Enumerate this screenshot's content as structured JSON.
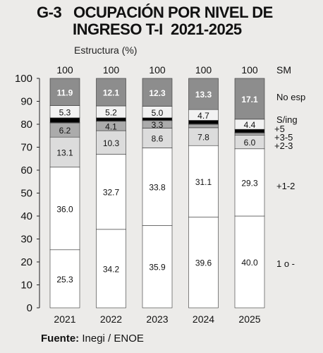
{
  "title": {
    "code": "G-3",
    "line1": "OCUPACIÓN POR NIVEL DE",
    "line2": "INGRESO T-I  2021-2025"
  },
  "subtitle": "Estructura (%)",
  "source": {
    "label": "Fuente:",
    "text": "Inegi / ENOE"
  },
  "chart_data": {
    "type": "bar",
    "stacked": true,
    "categories": [
      "2021",
      "2022",
      "2023",
      "2024",
      "2025"
    ],
    "totals": [
      "100",
      "100",
      "100",
      "100",
      "100"
    ],
    "ylim": [
      0,
      100
    ],
    "yticks": [
      0,
      10,
      20,
      30,
      40,
      50,
      60,
      70,
      80,
      90,
      100
    ],
    "grid": false,
    "legend_header": "SM",
    "series": [
      {
        "name": "1 o -",
        "values": [
          25.3,
          34.2,
          35.9,
          39.6,
          40.0
        ],
        "color": "#ffffff",
        "labels": [
          "25.3",
          "34.2",
          "35.9",
          "39.6",
          "40.0"
        ]
      },
      {
        "name": "+1-2",
        "values": [
          36.0,
          32.7,
          33.8,
          31.1,
          29.3
        ],
        "color": "#ffffff",
        "labels": [
          "36.0",
          "32.7",
          "33.8",
          "31.1",
          "29.3"
        ]
      },
      {
        "name": "+2-3",
        "values": [
          13.1,
          10.3,
          8.6,
          7.8,
          6.0
        ],
        "color": "#dcdcdc",
        "labels": [
          "13.1",
          "10.3",
          "8.6",
          "7.8",
          "6.0"
        ]
      },
      {
        "name": "+3-5",
        "values": [
          6.2,
          4.1,
          3.3,
          1.5,
          0.9
        ],
        "color": "#ababab",
        "labels": [
          "6.2",
          "4.1",
          "3.3",
          "",
          ""
        ]
      },
      {
        "name": "+5",
        "values": [
          0.2,
          0.2,
          0.2,
          0.2,
          0.2
        ],
        "color": "#8a8a8a",
        "labels": [
          "",
          "",
          "",
          "",
          ""
        ]
      },
      {
        "name": "S/ing",
        "values": [
          2.0,
          1.3,
          1.0,
          1.5,
          1.4
        ],
        "color": "#000000",
        "labels": [
          "",
          "",
          "",
          "",
          ""
        ]
      },
      {
        "name": "",
        "values": [
          5.3,
          5.2,
          5.0,
          4.7,
          4.4
        ],
        "color": "#f2f2f2",
        "labels": [
          "5.3",
          "5.2",
          "5.0",
          "4.7",
          "4.4"
        ]
      },
      {
        "name": "No esp",
        "values": [
          11.9,
          12.1,
          12.3,
          13.3,
          17.1
        ],
        "color": "#8d8d8d",
        "labels": [
          "11.9",
          "12.1",
          "12.3",
          "13.3",
          "17.1"
        ]
      }
    ]
  }
}
